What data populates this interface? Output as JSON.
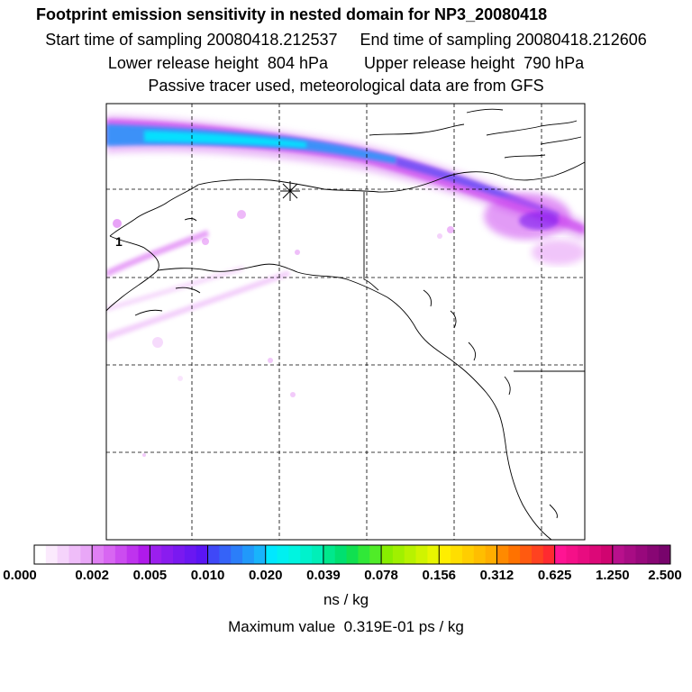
{
  "header": {
    "title": "Footprint emission sensitivity in nested domain for NP3_20080418",
    "start_label": "Start time of sampling 20080418.212537",
    "end_label": "End time of sampling 20080418.212606",
    "lower_label": "Lower release height  804 hPa",
    "upper_label": "Upper release height  790 hPa",
    "note": "Passive tracer used, meteorological data are from GFS"
  },
  "map": {
    "marker_label": "1",
    "release_marker_icon": "asterisk-icon"
  },
  "colorbar": {
    "tick_labels": [
      "0.000",
      "0.002",
      "0.005",
      "0.010",
      "0.020",
      "0.039",
      "0.078",
      "0.156",
      "0.312",
      "0.625",
      "1.250",
      "2.500"
    ],
    "colors": [
      [
        "#ffffff",
        "#fbeafd",
        "#f5d4fb",
        "#efbdf9",
        "#e9a7f7"
      ],
      [
        "#e07ff4",
        "#d866f2",
        "#cc4cf0",
        "#bf33ee",
        "#b01aeb"
      ],
      [
        "#9b1fee",
        "#8a1cef",
        "#7a19f0",
        "#6a17f2",
        "#5a15f4"
      ],
      [
        "#3f48f7",
        "#3563f8",
        "#2b7ef9",
        "#2199fa",
        "#18b4fb"
      ],
      [
        "#00e8ff",
        "#00f0f0",
        "#00f4e0",
        "#00f2cc",
        "#00efb8"
      ],
      [
        "#00e88c",
        "#00e070",
        "#10e050",
        "#30e838",
        "#50ec28"
      ],
      [
        "#88ee00",
        "#a0f000",
        "#b8f200",
        "#d0f400",
        "#e8f600"
      ],
      [
        "#ffee00",
        "#ffde00",
        "#ffce00",
        "#ffbe00",
        "#ffae00"
      ],
      [
        "#ff8a00",
        "#ff7200",
        "#ff5a10",
        "#ff4220",
        "#ff2a30"
      ],
      [
        "#ff1493",
        "#f51088",
        "#e80c80",
        "#dc0878",
        "#d00470"
      ],
      [
        "#b8108c",
        "#a80c84",
        "#98087c",
        "#880674",
        "#78046c"
      ]
    ],
    "units": "ns / kg"
  },
  "footer": {
    "max_value": "Maximum value  0.319E-01 ps / kg"
  }
}
